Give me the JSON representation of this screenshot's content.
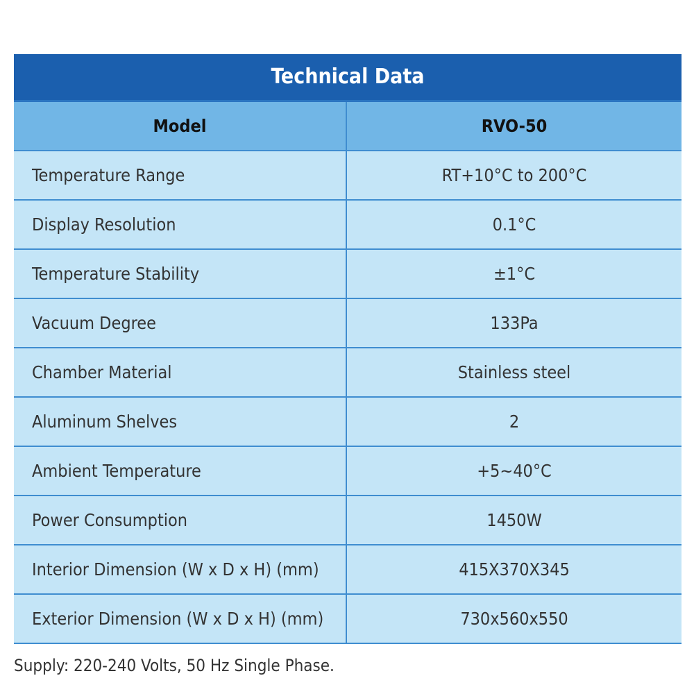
{
  "table": {
    "title": "Technical Data",
    "header": [
      "Model",
      "RVO-50"
    ],
    "rows": [
      [
        "Temperature Range",
        "RT+10°C to 200°C"
      ],
      [
        "Display Resolution",
        "0.1°C"
      ],
      [
        "Temperature Stability",
        "±1°C"
      ],
      [
        "Vacuum Degree",
        "133Pa"
      ],
      [
        "Chamber Material",
        "Stainless steel"
      ],
      [
        "Aluminum Shelves",
        "2"
      ],
      [
        "Ambient Temperature",
        "+5~40°C"
      ],
      [
        "Power Consumption",
        "1450W"
      ],
      [
        "Interior Dimension (W x D x H) (mm)",
        "415X370X345"
      ],
      [
        "Exterior Dimension (W x D x H) (mm)",
        "730x560x550"
      ]
    ]
  },
  "footnote": "Supply: 220-240 Volts, 50 Hz Single Phase."
}
